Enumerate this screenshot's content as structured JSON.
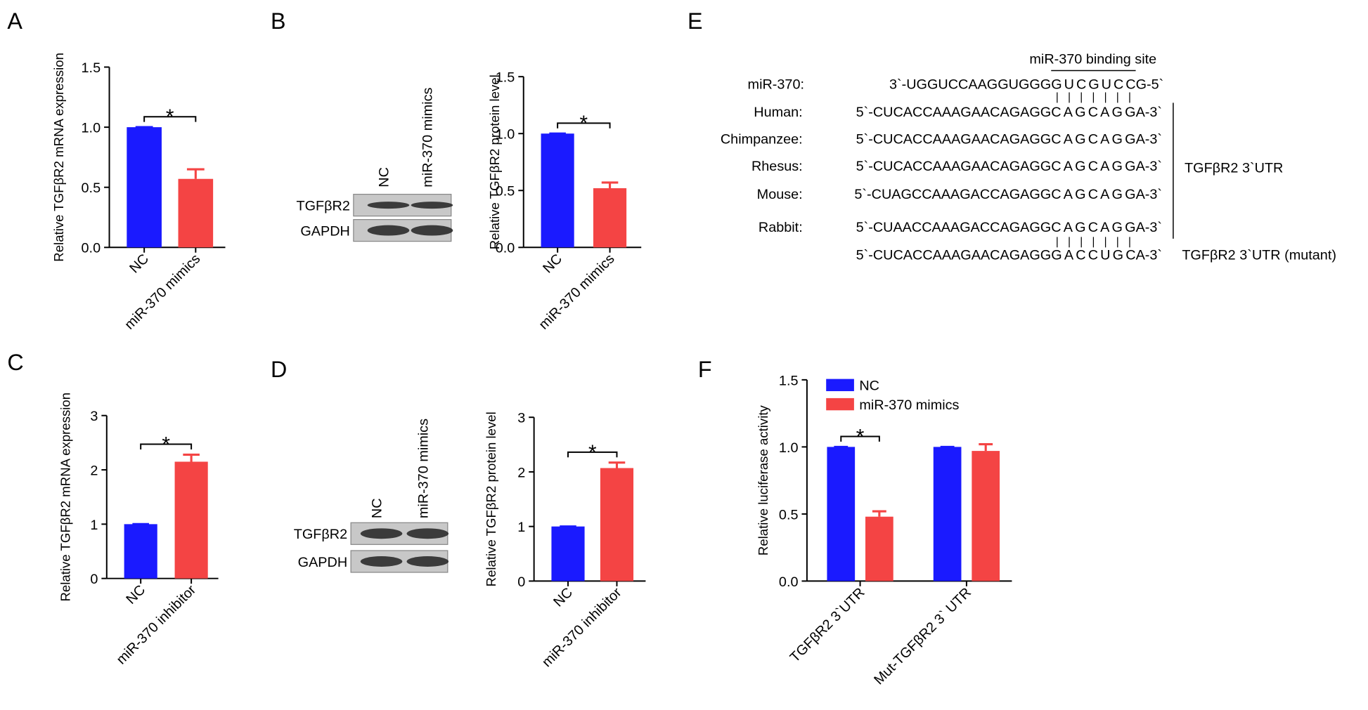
{
  "panel_labels": [
    "A",
    "B",
    "C",
    "D",
    "E",
    "F"
  ],
  "chart_data": [
    {
      "type": "bar",
      "y_label": "Relative TGFβR2 mRNA expression",
      "categories": [
        "NC",
        "miR-370 mimics"
      ],
      "values": [
        1.0,
        0.57
      ],
      "errors": [
        0,
        0.08
      ],
      "colors": [
        "#1a1aff",
        "#f44444"
      ],
      "ylim": [
        0,
        1.5
      ],
      "yticks": [
        {
          "value": 0,
          "label": "0.0"
        },
        {
          "value": 0.5,
          "label": "0.5"
        },
        {
          "value": 1,
          "label": "1.0"
        },
        {
          "value": 1.5,
          "label": "1.5"
        }
      ],
      "significance": "*"
    },
    {
      "type": "bar",
      "y_label": "Relative TGFβR2 protein level",
      "categories": [
        "NC",
        "miR-370 mimics"
      ],
      "values": [
        1.0,
        0.52
      ],
      "errors": [
        0,
        0.05
      ],
      "colors": [
        "#1a1aff",
        "#f44444"
      ],
      "ylim": [
        0,
        1.5
      ],
      "yticks": [
        {
          "value": 0,
          "label": "0.0"
        },
        {
          "value": 0.5,
          "label": "0.5"
        },
        {
          "value": 1,
          "label": "1.0"
        },
        {
          "value": 1.5,
          "label": "1.5"
        }
      ],
      "significance": "*"
    },
    {
      "type": "bar",
      "y_label": "Relative TGFβR2 mRNA expression",
      "categories": [
        "NC",
        "miR-370 inhibitor"
      ],
      "values": [
        1.0,
        2.15
      ],
      "errors": [
        0,
        0.13
      ],
      "colors": [
        "#1a1aff",
        "#f44444"
      ],
      "ylim": [
        0,
        3
      ],
      "yticks": [
        0,
        1,
        2,
        3
      ],
      "significance": "*"
    },
    {
      "type": "bar",
      "y_label": "Relative TGFβR2 protein level",
      "categories": [
        "NC",
        "miR-370 inhibitor"
      ],
      "values": [
        1.0,
        2.07
      ],
      "errors": [
        0,
        0.1
      ],
      "colors": [
        "#1a1aff",
        "#f44444"
      ],
      "ylim": [
        0,
        3
      ],
      "yticks": [
        0,
        1,
        2,
        3
      ],
      "significance": "*"
    },
    {
      "type": "grouped_bar",
      "y_label": "Relative luciferase activity",
      "categories": [
        "TGFβR2 3`UTR",
        "Mut-TGFβR2 3` UTR"
      ],
      "series": [
        {
          "name": "NC",
          "color": "#1a1aff",
          "values": [
            1.0,
            1.0
          ],
          "errors": [
            0,
            0
          ]
        },
        {
          "name": "miR-370 mimics",
          "color": "#f44444",
          "values": [
            0.48,
            0.97
          ],
          "errors": [
            0.04,
            0.05
          ]
        }
      ],
      "ylim": [
        0,
        1.5
      ],
      "yticks": [
        {
          "value": 0,
          "label": "0.0"
        },
        {
          "value": 0.5,
          "label": "0.5"
        },
        {
          "value": 1,
          "label": "1.0"
        },
        {
          "value": 1.5,
          "label": "1.5"
        }
      ],
      "significance": "*",
      "legend": "top-left"
    }
  ],
  "blots": [
    {
      "lanes": [
        "NC",
        "miR-370 mimics"
      ],
      "rows": [
        "TGFβR2",
        "GAPDH"
      ]
    },
    {
      "lanes": [
        "NC",
        "miR-370 mimics"
      ],
      "rows": [
        "TGFβR2",
        "GAPDH"
      ]
    }
  ],
  "alignment": {
    "binding_site_label": "miR-370 binding site",
    "mirna": {
      "name": "miR-370:",
      "prefix": "3`-UGGUCCAAGGUGGG",
      "site": "GUCGUCC",
      "suffix": "G-5`"
    },
    "site_color": "#ee0000",
    "rows": [
      {
        "name": "Human:",
        "prefix": "5`-CUCACCAAAGAACAGAGG",
        "site": "CAGCAGG",
        "suffix": "A-3`"
      },
      {
        "name": "Chimpanzee:",
        "prefix": "5`-CUCACCAAAGAACAGAGG",
        "site": "CAGCAGG",
        "suffix": "A-3`"
      },
      {
        "name": "Rhesus:",
        "prefix": "5`-CUCACCAAAGAACAGAGG",
        "site": "CAGCAGG",
        "suffix": "A-3`"
      },
      {
        "name": "Mouse:",
        "prefix": "5`-CUAGCCAAAGACCAGAGG",
        "site": "CAGCAGG",
        "suffix": "A-3`"
      },
      {
        "name": "Rabbit:",
        "prefix": "5`-CUAACCAAAGACCAGAGG",
        "site": "CAGCAGG",
        "suffix": "A-3`"
      }
    ],
    "group_label": "TGFβR2 3`UTR",
    "mutant": {
      "prefix": "5`-CUCACCAAAGAACAGAGG",
      "site": "GACCUGC",
      "suffix": "A-3`",
      "color": "#0000dd"
    },
    "mutant_label": "TGFβR2 3`UTR (mutant)"
  }
}
